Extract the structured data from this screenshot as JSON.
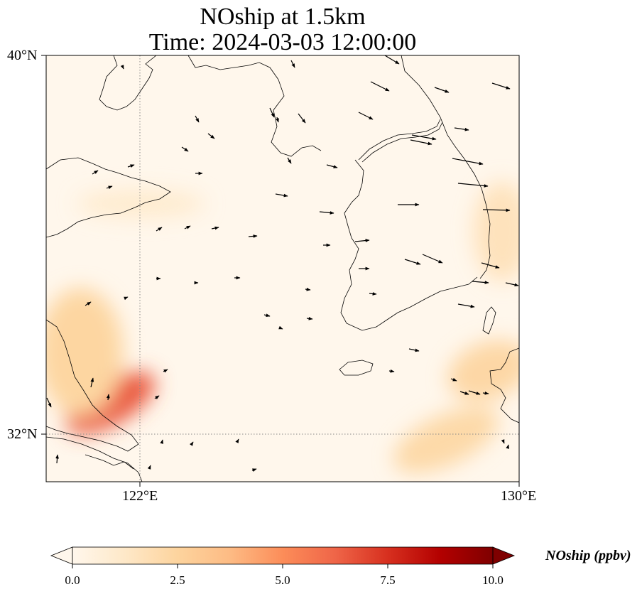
{
  "title_line1": "NOship at 1.5km",
  "title_line2": "Time: 2024-03-03 12:00:00",
  "map": {
    "lon_range": [
      119,
      130
    ],
    "lat_range": [
      30.8,
      40
    ],
    "lat_ticks": [
      {
        "value": 40,
        "label": "40°N"
      },
      {
        "value": 32,
        "label": "32°N"
      }
    ],
    "lon_ticks": [
      {
        "value": 122,
        "label": "122°E"
      },
      {
        "value": 130,
        "label": "130°E"
      }
    ],
    "gridlines": {
      "lon": 122,
      "lat": 32,
      "style": "dotted"
    },
    "field": "NOship concentration at 1.5km",
    "hotspots": [
      {
        "lon": 120.5,
        "lat": 32.5,
        "value": 6.5
      },
      {
        "lon": 119.8,
        "lat": 33.6,
        "value": 2.4
      },
      {
        "lon": 129.3,
        "lat": 33.2,
        "value": 2.3
      },
      {
        "lon": 128.3,
        "lat": 31.7,
        "value": 2.2
      },
      {
        "lon": 129.6,
        "lat": 36.2,
        "value": 1.6
      },
      {
        "lon": 121.2,
        "lat": 36.8,
        "value": 1.0
      }
    ]
  },
  "colorbar": {
    "label": "NOship (ppbv)",
    "min": 0,
    "max": 10,
    "extend": "both",
    "cmap": "OrRd",
    "stops": [
      "#fff7ec",
      "#fee8c8",
      "#fdd49e",
      "#fdbb84",
      "#fc8d59",
      "#ef6548",
      "#d7301f",
      "#b30000",
      "#7f0000"
    ],
    "ticks": [
      "0.0",
      "2.5",
      "5.0",
      "7.5",
      "10.0"
    ]
  },
  "colors": {
    "coastline": "#000000",
    "arrow": "#000000",
    "grid": "#888888"
  }
}
